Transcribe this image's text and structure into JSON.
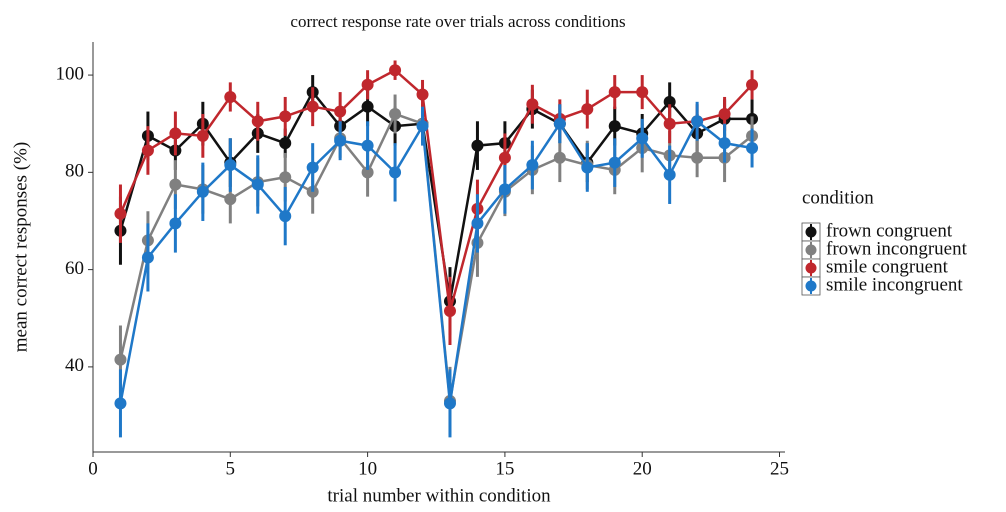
{
  "chart_data": {
    "type": "line",
    "title": "correct response rate over trials across conditions",
    "x_label": "trial number within condition",
    "y_label": "mean correct responses (%)",
    "legend_title": "condition",
    "legend": "right",
    "x": [
      1,
      2,
      3,
      4,
      5,
      6,
      7,
      8,
      9,
      10,
      11,
      12,
      13,
      14,
      15,
      16,
      17,
      18,
      19,
      20,
      21,
      22,
      23,
      24
    ],
    "xlim": [
      0,
      25.2
    ],
    "xticks": [
      0,
      5,
      10,
      15,
      20,
      25
    ],
    "ylim": [
      22.5,
      106.8
    ],
    "yticks": [
      40,
      60,
      80,
      100
    ],
    "series": [
      {
        "name": "frown congruent",
        "color": "#111111",
        "values": [
          68,
          87.5,
          84.5,
          90,
          82,
          88,
          86,
          96.5,
          89.5,
          93.5,
          89.5,
          90,
          53.5,
          85.5,
          86,
          93,
          90,
          82,
          89.5,
          88,
          94.5,
          88,
          91,
          91
        ],
        "errors": [
          7,
          5,
          4,
          4.5,
          5,
          4,
          3,
          3.5,
          4,
          4,
          4,
          4,
          7,
          5,
          4.5,
          4,
          4,
          4,
          4,
          4,
          4,
          4,
          4,
          4
        ]
      },
      {
        "name": "frown incongruent",
        "color": "#808080",
        "values": [
          41.5,
          66,
          77.5,
          76.5,
          74.5,
          78,
          79,
          76,
          87,
          80,
          92,
          90,
          33,
          65.5,
          76,
          80.5,
          83,
          81.5,
          80.5,
          85,
          83.5,
          83,
          83,
          87.5
        ],
        "errors": [
          7,
          6,
          5,
          5,
          5,
          5,
          5,
          4.5,
          4,
          5,
          4,
          4,
          7,
          7,
          5,
          5,
          5,
          5,
          5,
          5,
          5,
          4,
          5,
          4
        ]
      },
      {
        "name": "smile congruent",
        "color": "#c0272d",
        "values": [
          71.5,
          84.5,
          88,
          87.5,
          95.5,
          90.5,
          91.5,
          93.5,
          92.5,
          98,
          101,
          96,
          51.5,
          72.5,
          83,
          94,
          91,
          93,
          96.5,
          96.5,
          90,
          90.5,
          92,
          98
        ],
        "errors": [
          6,
          5,
          4.5,
          4.5,
          3,
          4,
          4,
          4,
          4,
          3,
          2,
          3,
          7,
          6,
          5,
          4,
          4,
          4,
          3.5,
          3.5,
          4,
          3.5,
          3.5,
          3
        ]
      },
      {
        "name": "smile incongruent",
        "color": "#1f78c8",
        "values": [
          32.5,
          62.5,
          69.5,
          76,
          81.5,
          77.5,
          71,
          81,
          86.5,
          85.5,
          80,
          89.5,
          32.5,
          69.5,
          76.5,
          81.5,
          90,
          81,
          82,
          87,
          79.5,
          90.5,
          86,
          85
        ],
        "errors": [
          7,
          7,
          6,
          6,
          5.5,
          6,
          6,
          5,
          4,
          5,
          6,
          4,
          7,
          6,
          5,
          5,
          4,
          5,
          5,
          4,
          6,
          4,
          4,
          4
        ]
      }
    ]
  }
}
